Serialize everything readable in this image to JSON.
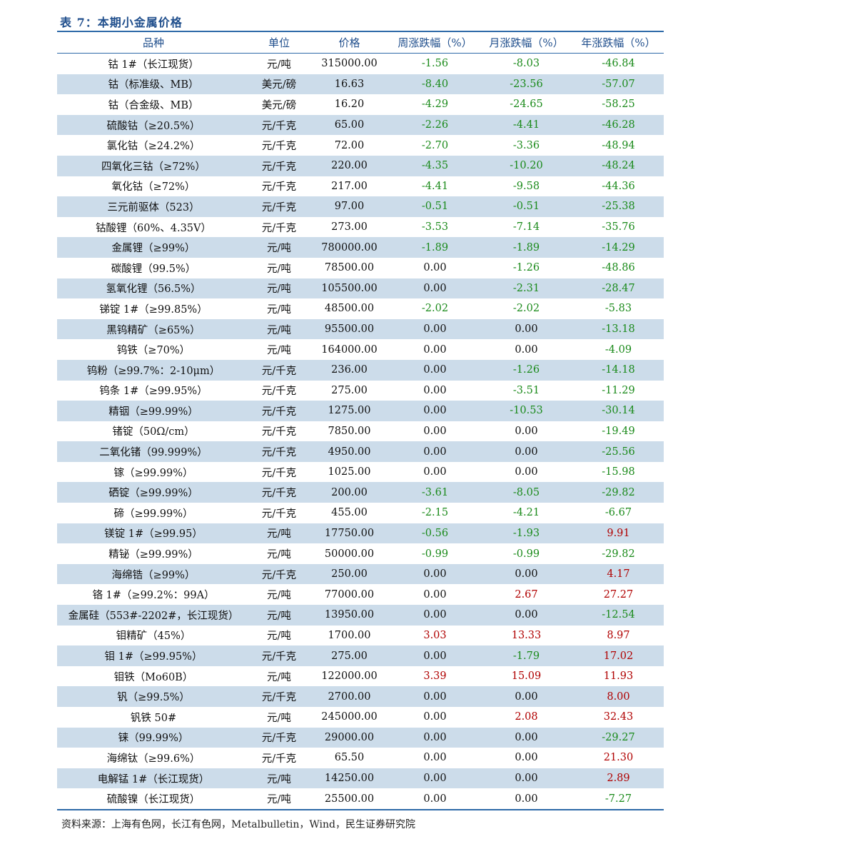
{
  "title": "表 7：本期小金属价格",
  "headers": [
    "品种",
    "单位",
    "价格",
    "周涨跌幅（%）",
    "月涨跌幅（%）",
    "年涨跌幅（%）"
  ],
  "rows": [
    [
      "钴 1#（长江现货）",
      "元/吨",
      "315000.00",
      "-1.56",
      "-8.03",
      "-46.84"
    ],
    [
      "钴（标准级、MB）",
      "美元/磅",
      "16.63",
      "-8.40",
      "-23.56",
      "-57.07"
    ],
    [
      "钴（合金级、MB）",
      "美元/磅",
      "16.20",
      "-4.29",
      "-24.65",
      "-58.25"
    ],
    [
      "硫酸钴（≥20.5%）",
      "元/千克",
      "65.00",
      "-2.26",
      "-4.41",
      "-46.28"
    ],
    [
      "氯化钴（≥24.2%）",
      "元/千克",
      "72.00",
      "-2.70",
      "-3.36",
      "-48.94"
    ],
    [
      "四氧化三钴（≥72%）",
      "元/千克",
      "220.00",
      "-4.35",
      "-10.20",
      "-48.24"
    ],
    [
      "氧化钴（≥72%）",
      "元/千克",
      "217.00",
      "-4.41",
      "-9.58",
      "-44.36"
    ],
    [
      "三元前驱体（523）",
      "元/千克",
      "97.00",
      "-0.51",
      "-0.51",
      "-25.38"
    ],
    [
      "钴酸锂（60%、4.35V）",
      "元/千克",
      "273.00",
      "-3.53",
      "-7.14",
      "-35.76"
    ],
    [
      "金属锂（≥99%）",
      "元/吨",
      "780000.00",
      "-1.89",
      "-1.89",
      "-14.29"
    ],
    [
      "碳酸锂（99.5%）",
      "元/吨",
      "78500.00",
      "0.00",
      "-1.26",
      "-48.86"
    ],
    [
      "氢氧化锂（56.5%）",
      "元/吨",
      "105500.00",
      "0.00",
      "-2.31",
      "-28.47"
    ],
    [
      "锑锭 1#（≥99.85%）",
      "元/吨",
      "48500.00",
      "-2.02",
      "-2.02",
      "-5.83"
    ],
    [
      "黑钨精矿（≥65%）",
      "元/吨",
      "95500.00",
      "0.00",
      "0.00",
      "-13.18"
    ],
    [
      "钨铁（≥70%）",
      "元/吨",
      "164000.00",
      "0.00",
      "0.00",
      "-4.09"
    ],
    [
      "钨粉（≥99.7%：2-10μm）",
      "元/千克",
      "236.00",
      "0.00",
      "-1.26",
      "-14.18"
    ],
    [
      "钨条 1#（≥99.95%）",
      "元/千克",
      "275.00",
      "0.00",
      "-3.51",
      "-11.29"
    ],
    [
      "精铟（≥99.99%）",
      "元/千克",
      "1275.00",
      "0.00",
      "-10.53",
      "-30.14"
    ],
    [
      "锗锭（50Ω/cm）",
      "元/千克",
      "7850.00",
      "0.00",
      "0.00",
      "-19.49"
    ],
    [
      "二氧化锗（99.999%）",
      "元/千克",
      "4950.00",
      "0.00",
      "0.00",
      "-25.56"
    ],
    [
      "镓（≥99.99%）",
      "元/千克",
      "1025.00",
      "0.00",
      "0.00",
      "-15.98"
    ],
    [
      "硒锭（≥99.99%）",
      "元/千克",
      "200.00",
      "-3.61",
      "-8.05",
      "-29.82"
    ],
    [
      "碲（≥99.99%）",
      "元/千克",
      "455.00",
      "-2.15",
      "-4.21",
      "-6.67"
    ],
    [
      "镁锭 1#（≥99.95）",
      "元/吨",
      "17750.00",
      "-0.56",
      "-1.93",
      "9.91"
    ],
    [
      "精铋（≥99.99%）",
      "元/吨",
      "50000.00",
      "-0.99",
      "-0.99",
      "-29.82"
    ],
    [
      "海绵锆（≥99%）",
      "元/千克",
      "250.00",
      "0.00",
      "0.00",
      "4.17"
    ],
    [
      "铬 1#（≥99.2%：99A）",
      "元/吨",
      "77000.00",
      "0.00",
      "2.67",
      "27.27"
    ],
    [
      "金属硅（553#-2202#，长江现货）",
      "元/吨",
      "13950.00",
      "0.00",
      "0.00",
      "-12.54"
    ],
    [
      "钼精矿（45%）",
      "元/吨",
      "1700.00",
      "3.03",
      "13.33",
      "8.97"
    ],
    [
      "钼 1#（≥99.95%）",
      "元/千克",
      "275.00",
      "0.00",
      "-1.79",
      "17.02"
    ],
    [
      "钼铁（Mo60B）",
      "元/吨",
      "122000.00",
      "3.39",
      "15.09",
      "11.93"
    ],
    [
      "钒（≥99.5%）",
      "元/千克",
      "2700.00",
      "0.00",
      "0.00",
      "8.00"
    ],
    [
      "钒铁 50#",
      "元/吨",
      "245000.00",
      "0.00",
      "2.08",
      "32.43"
    ],
    [
      "铼（99.99%）",
      "元/千克",
      "29000.00",
      "0.00",
      "0.00",
      "-29.27"
    ],
    [
      "海绵钛（≥99.6%）",
      "元/千克",
      "65.50",
      "0.00",
      "0.00",
      "21.30"
    ],
    [
      "电解锰 1#（长江现货）",
      "元/吨",
      "14250.00",
      "0.00",
      "0.00",
      "2.89"
    ],
    [
      "硫酸镍（长江现货）",
      "元/吨",
      "25500.00",
      "0.00",
      "0.00",
      "-7.27"
    ]
  ],
  "source": "资料来源：上海有色网，长江有色网，Metalbulletin，Wind，民生证券研究院"
}
